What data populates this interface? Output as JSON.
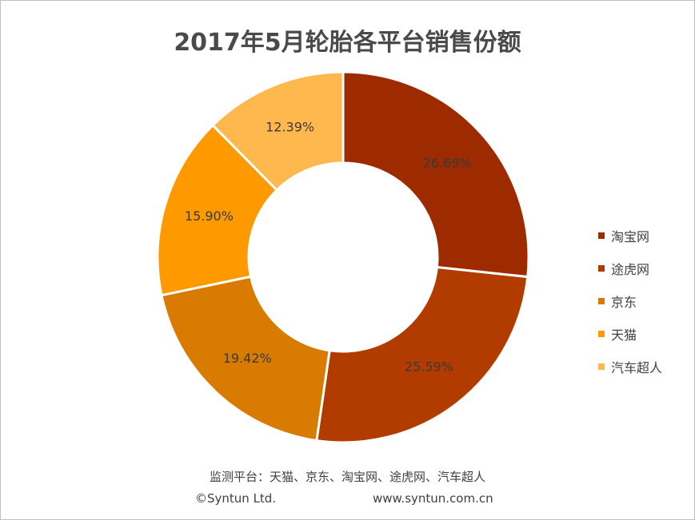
{
  "chart_data": {
    "type": "pie",
    "style": "donut",
    "title": "2017年5月轮胎各平台销售份额",
    "categories": [
      "淘宝网",
      "途虎网",
      "京东",
      "天猫",
      "汽车超人"
    ],
    "values": [
      26.69,
      25.59,
      19.42,
      15.9,
      12.39
    ],
    "labels": [
      "26.69%",
      "25.59%",
      "19.42%",
      "15.90%",
      "12.39%"
    ],
    "colors": [
      "#9e2a00",
      "#b23c00",
      "#d97b00",
      "#ff9900",
      "#ffb84d"
    ],
    "legend_position": "right"
  },
  "footer": {
    "source": "监测平台：天猫、京东、淘宝网、途虎网、汽车超人",
    "copyright": "©Syntun Ltd.",
    "website": "www.syntun.com.cn"
  }
}
